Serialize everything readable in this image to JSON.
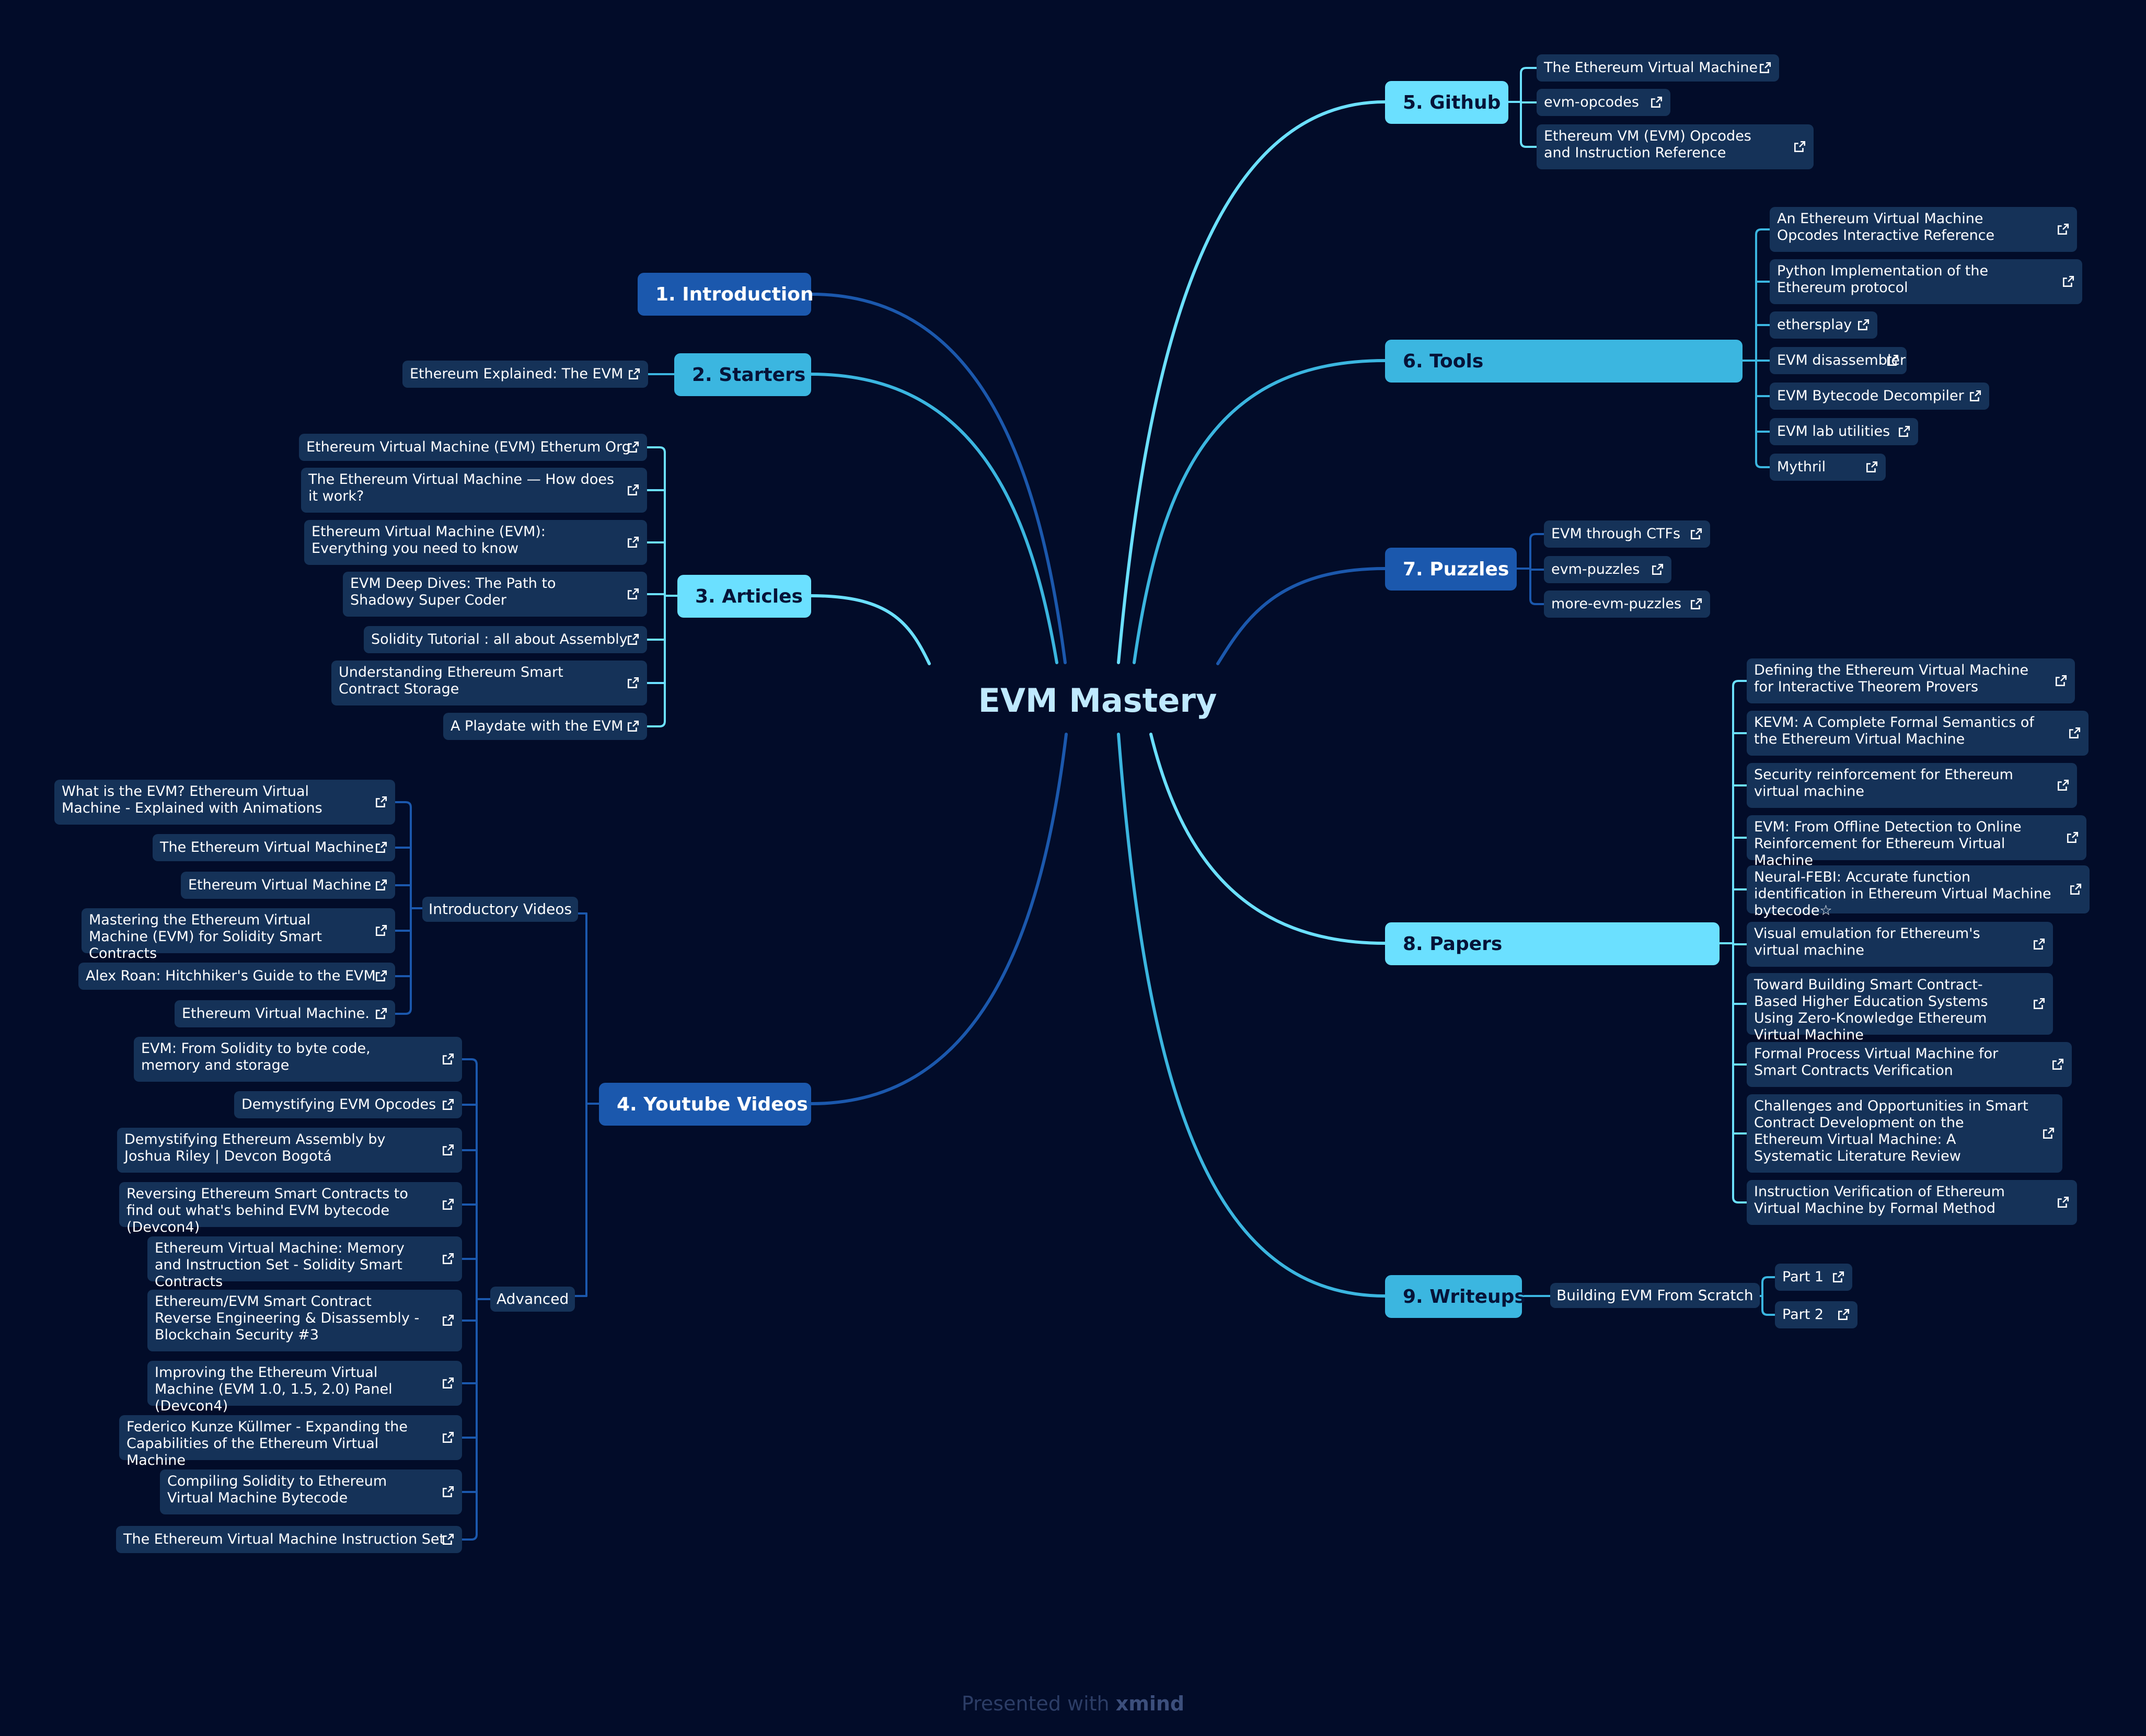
{
  "colors": {
    "background": "#020c29",
    "dark_topic": "#1b58ad",
    "mid_topic": "#3bb6e0",
    "light_topic": "#6be0ff",
    "leaf": "#153258"
  },
  "root": {
    "title": "EVM Mastery"
  },
  "topics": {
    "introduction": {
      "label": "1. Introduction"
    },
    "starters": {
      "label": "2. Starters",
      "items": [
        "Ethereum Explained: The EVM"
      ]
    },
    "articles": {
      "label": "3. Articles",
      "items": [
        "Ethereum Virtual Machine (EVM) Etherum Org",
        "The Ethereum Virtual Machine — How does it work?",
        "Ethereum Virtual Machine (EVM): Everything you need to know",
        "EVM Deep Dives: The Path to Shadowy Super Coder",
        "Solidity Tutorial : all about Assembly",
        "Understanding Ethereum Smart Contract Storage",
        "A Playdate with the EVM"
      ]
    },
    "youtube": {
      "label": "4. Youtube Videos",
      "intro_label": "Introductory Videos",
      "intro_items": [
        "What is the EVM? Ethereum Virtual Machine - Explained with Animations",
        "The Ethereum Virtual Machine",
        "Ethereum Virtual Machine",
        "Mastering the Ethereum Virtual Machine (EVM) for Solidity Smart Contracts",
        "Alex Roan: Hitchhiker's Guide to the EVM",
        "Ethereum Virtual Machine."
      ],
      "advanced_label": "Advanced",
      "advanced_items": [
        "EVM: From Solidity to byte code, memory and storage",
        "Demystifying EVM Opcodes",
        "Demystifying Ethereum Assembly by Joshua Riley | Devcon Bogotá",
        "Reversing Ethereum Smart Contracts to find out what's behind EVM bytecode (Devcon4)",
        "Ethereum Virtual Machine: Memory and Instruction Set - Solidity Smart Contracts",
        "Ethereum/EVM Smart Contract Reverse Engineering & Disassembly - Blockchain Security #3",
        "Improving the Ethereum Virtual Machine (EVM 1.0, 1.5, 2.0) Panel (Devcon4)",
        "Federico Kunze Küllmer - Expanding the Capabilities of the Ethereum Virtual Machine",
        "Compiling Solidity to Ethereum Virtual Machine Bytecode",
        "The Ethereum Virtual Machine Instruction Set"
      ]
    },
    "github": {
      "label": "5. Github",
      "items": [
        "The Ethereum Virtual Machine",
        "evm-opcodes",
        "Ethereum VM (EVM) Opcodes and Instruction Reference"
      ]
    },
    "tools": {
      "label": "6. Tools",
      "items": [
        "An Ethereum Virtual Machine Opcodes Interactive Reference",
        "Python Implementation of the Ethereum protocol",
        "ethersplay",
        "EVM disassembler",
        "EVM Bytecode Decompiler",
        "EVM lab utilities",
        "Mythril"
      ]
    },
    "puzzles": {
      "label": "7. Puzzles",
      "items": [
        "EVM through CTFs",
        "evm-puzzles",
        "more-evm-puzzles"
      ]
    },
    "papers": {
      "label": "8. Papers",
      "items": [
        "Defining the Ethereum Virtual Machine for Interactive Theorem Provers",
        "KEVM: A Complete Formal Semantics of the Ethereum Virtual Machine",
        "Security reinforcement for Ethereum virtual machine",
        "EVM: From Offline Detection to Online Reinforcement for Ethereum Virtual Machine",
        "Neural-FEBI: Accurate function identification in Ethereum Virtual Machine bytecode☆",
        "Visual emulation for Ethereum's virtual machine",
        "Toward Building Smart Contract-Based Higher Education Systems Using Zero-Knowledge Ethereum Virtual Machine",
        "Formal Process Virtual Machine for Smart Contracts Verification",
        "Challenges and Opportunities in Smart Contract Development on the Ethereum Virtual Machine: A Systematic Literature Review",
        "Instruction Verification of Ethereum Virtual Machine by Formal Method"
      ]
    },
    "writeups": {
      "label": "9. Writeups",
      "sub_label": "Building EVM From Scratch",
      "items": [
        "Part 1",
        "Part 2"
      ]
    }
  },
  "footer": {
    "text": "Presented with",
    "brand": "xmind"
  }
}
